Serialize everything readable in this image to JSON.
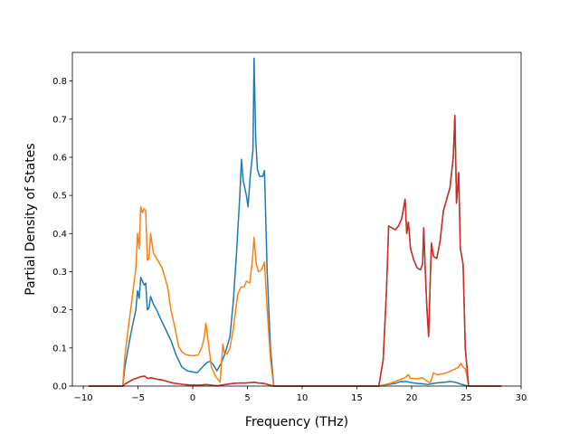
{
  "chart_data": {
    "type": "line",
    "title": "",
    "xlabel": "Frequency (THz)",
    "ylabel": "Partial Density of States",
    "xlim": [
      -11,
      30
    ],
    "ylim": [
      0,
      0.875
    ],
    "xticks": [
      -10,
      -5,
      0,
      5,
      10,
      15,
      20,
      25,
      30
    ],
    "xtick_labels": [
      "−10",
      "−5",
      "0",
      "5",
      "10",
      "15",
      "20",
      "25",
      "30"
    ],
    "yticks": [
      0.0,
      0.1,
      0.2,
      0.3,
      0.4,
      0.5,
      0.6,
      0.7,
      0.8
    ],
    "ytick_labels": [
      "0.0",
      "0.1",
      "0.2",
      "0.3",
      "0.4",
      "0.5",
      "0.6",
      "0.7",
      "0.8"
    ],
    "grid": false,
    "legend": null,
    "series": [
      {
        "color": "#1f77b4",
        "points": [
          [
            -9.5,
            0
          ],
          [
            -6.4,
            0
          ],
          [
            -6.2,
            0.05
          ],
          [
            -5.9,
            0.1
          ],
          [
            -5.5,
            0.16
          ],
          [
            -5.2,
            0.2
          ],
          [
            -5.05,
            0.25
          ],
          [
            -4.9,
            0.23
          ],
          [
            -4.75,
            0.285
          ],
          [
            -4.6,
            0.275
          ],
          [
            -4.45,
            0.265
          ],
          [
            -4.3,
            0.27
          ],
          [
            -4.15,
            0.2
          ],
          [
            -4.0,
            0.205
          ],
          [
            -3.85,
            0.235
          ],
          [
            -3.6,
            0.215
          ],
          [
            -3.3,
            0.2
          ],
          [
            -3.0,
            0.18
          ],
          [
            -2.5,
            0.15
          ],
          [
            -2.0,
            0.12
          ],
          [
            -1.5,
            0.08
          ],
          [
            -1.0,
            0.05
          ],
          [
            -0.5,
            0.04
          ],
          [
            0.0,
            0.037
          ],
          [
            0.4,
            0.035
          ],
          [
            0.9,
            0.05
          ],
          [
            1.3,
            0.062
          ],
          [
            1.6,
            0.065
          ],
          [
            1.9,
            0.055
          ],
          [
            2.2,
            0.04
          ],
          [
            2.6,
            0.06
          ],
          [
            3.0,
            0.09
          ],
          [
            3.4,
            0.13
          ],
          [
            3.7,
            0.22
          ],
          [
            4.0,
            0.35
          ],
          [
            4.3,
            0.5
          ],
          [
            4.45,
            0.595
          ],
          [
            4.6,
            0.54
          ],
          [
            4.9,
            0.5
          ],
          [
            5.05,
            0.47
          ],
          [
            5.25,
            0.55
          ],
          [
            5.5,
            0.62
          ],
          [
            5.6,
            0.86
          ],
          [
            5.75,
            0.65
          ],
          [
            5.9,
            0.57
          ],
          [
            6.1,
            0.55
          ],
          [
            6.4,
            0.55
          ],
          [
            6.55,
            0.565
          ],
          [
            6.8,
            0.3
          ],
          [
            7.1,
            0.1
          ],
          [
            7.4,
            0
          ],
          [
            17.0,
            0
          ],
          [
            17.4,
            0.002
          ],
          [
            18.0,
            0.005
          ],
          [
            18.5,
            0.007
          ],
          [
            19.0,
            0.012
          ],
          [
            19.5,
            0.012
          ],
          [
            20.0,
            0.009
          ],
          [
            20.5,
            0.007
          ],
          [
            21.0,
            0.006
          ],
          [
            21.5,
            0.004
          ],
          [
            22.0,
            0.007
          ],
          [
            22.5,
            0.009
          ],
          [
            23.0,
            0.01
          ],
          [
            23.5,
            0.012
          ],
          [
            24.0,
            0.01
          ],
          [
            24.5,
            0.005
          ],
          [
            25.0,
            0.001
          ],
          [
            25.2,
            0
          ],
          [
            28.2,
            0
          ]
        ]
      },
      {
        "color": "#ff7f0e",
        "points": [
          [
            -9.5,
            0
          ],
          [
            -6.4,
            0
          ],
          [
            -6.2,
            0.08
          ],
          [
            -5.9,
            0.15
          ],
          [
            -5.5,
            0.24
          ],
          [
            -5.2,
            0.31
          ],
          [
            -5.05,
            0.4
          ],
          [
            -4.9,
            0.36
          ],
          [
            -4.75,
            0.47
          ],
          [
            -4.6,
            0.455
          ],
          [
            -4.45,
            0.465
          ],
          [
            -4.3,
            0.46
          ],
          [
            -4.15,
            0.33
          ],
          [
            -4.0,
            0.335
          ],
          [
            -3.85,
            0.4
          ],
          [
            -3.6,
            0.35
          ],
          [
            -3.4,
            0.34
          ],
          [
            -3.2,
            0.33
          ],
          [
            -2.8,
            0.31
          ],
          [
            -2.3,
            0.26
          ],
          [
            -2.0,
            0.2
          ],
          [
            -1.6,
            0.15
          ],
          [
            -1.3,
            0.105
          ],
          [
            -1.0,
            0.09
          ],
          [
            -0.6,
            0.082
          ],
          [
            -0.2,
            0.08
          ],
          [
            0.2,
            0.08
          ],
          [
            0.5,
            0.082
          ],
          [
            0.8,
            0.1
          ],
          [
            1.0,
            0.12
          ],
          [
            1.2,
            0.165
          ],
          [
            1.4,
            0.12
          ],
          [
            1.7,
            0.05
          ],
          [
            2.1,
            0.025
          ],
          [
            2.5,
            0.01
          ],
          [
            2.75,
            0.11
          ],
          [
            2.9,
            0.085
          ],
          [
            3.15,
            0.085
          ],
          [
            3.4,
            0.1
          ],
          [
            3.7,
            0.15
          ],
          [
            4.1,
            0.24
          ],
          [
            4.4,
            0.26
          ],
          [
            4.7,
            0.26
          ],
          [
            4.9,
            0.275
          ],
          [
            5.2,
            0.27
          ],
          [
            5.45,
            0.33
          ],
          [
            5.6,
            0.39
          ],
          [
            5.8,
            0.32
          ],
          [
            6.0,
            0.3
          ],
          [
            6.3,
            0.305
          ],
          [
            6.55,
            0.325
          ],
          [
            6.8,
            0.2
          ],
          [
            7.1,
            0.07
          ],
          [
            7.4,
            0
          ],
          [
            17.0,
            0
          ],
          [
            17.4,
            0.003
          ],
          [
            18.0,
            0.007
          ],
          [
            18.5,
            0.012
          ],
          [
            19.0,
            0.018
          ],
          [
            19.4,
            0.022
          ],
          [
            19.7,
            0.03
          ],
          [
            19.9,
            0.02
          ],
          [
            20.3,
            0.02
          ],
          [
            20.7,
            0.02
          ],
          [
            21.0,
            0.022
          ],
          [
            21.3,
            0.015
          ],
          [
            21.7,
            0.008
          ],
          [
            22.0,
            0.035
          ],
          [
            22.3,
            0.03
          ],
          [
            22.8,
            0.032
          ],
          [
            23.2,
            0.035
          ],
          [
            23.6,
            0.04
          ],
          [
            24.0,
            0.045
          ],
          [
            24.3,
            0.05
          ],
          [
            24.5,
            0.06
          ],
          [
            24.7,
            0.05
          ],
          [
            24.9,
            0.045
          ],
          [
            25.1,
            0.02
          ],
          [
            25.2,
            0
          ],
          [
            28.2,
            0
          ]
        ]
      },
      {
        "color": "#2ca02c",
        "points": [
          [
            -9.5,
            0
          ],
          [
            -6.4,
            0
          ],
          [
            -6.2,
            0.005
          ],
          [
            -5.8,
            0.012
          ],
          [
            -5.4,
            0.018
          ],
          [
            -5.0,
            0.022
          ],
          [
            -4.7,
            0.025
          ],
          [
            -4.4,
            0.026
          ],
          [
            -4.1,
            0.02
          ],
          [
            -3.8,
            0.022
          ],
          [
            -3.3,
            0.018
          ],
          [
            -2.8,
            0.016
          ],
          [
            -2.3,
            0.012
          ],
          [
            -1.8,
            0.008
          ],
          [
            -1.3,
            0.006
          ],
          [
            -0.8,
            0.004
          ],
          [
            -0.3,
            0.003
          ],
          [
            0.3,
            0.002
          ],
          [
            0.8,
            0.003
          ],
          [
            1.3,
            0.004
          ],
          [
            1.8,
            0.002
          ],
          [
            2.3,
            0.001
          ],
          [
            2.7,
            0.003
          ],
          [
            3.2,
            0.005
          ],
          [
            3.7,
            0.007
          ],
          [
            4.2,
            0.008
          ],
          [
            4.7,
            0.008
          ],
          [
            5.2,
            0.009
          ],
          [
            5.6,
            0.01
          ],
          [
            6.0,
            0.008
          ],
          [
            6.5,
            0.007
          ],
          [
            7.0,
            0.003
          ],
          [
            7.4,
            0
          ],
          [
            17.0,
            0
          ],
          [
            17.4,
            0.07
          ],
          [
            17.7,
            0.25
          ],
          [
            17.9,
            0.42
          ],
          [
            18.2,
            0.415
          ],
          [
            18.5,
            0.41
          ],
          [
            18.8,
            0.42
          ],
          [
            19.1,
            0.44
          ],
          [
            19.4,
            0.49
          ],
          [
            19.55,
            0.4
          ],
          [
            19.7,
            0.43
          ],
          [
            19.9,
            0.36
          ],
          [
            20.2,
            0.33
          ],
          [
            20.5,
            0.31
          ],
          [
            20.8,
            0.305
          ],
          [
            21.0,
            0.32
          ],
          [
            21.1,
            0.415
          ],
          [
            21.25,
            0.3
          ],
          [
            21.4,
            0.2
          ],
          [
            21.55,
            0.13
          ],
          [
            21.8,
            0.375
          ],
          [
            22.0,
            0.34
          ],
          [
            22.3,
            0.335
          ],
          [
            22.6,
            0.38
          ],
          [
            22.9,
            0.46
          ],
          [
            23.2,
            0.49
          ],
          [
            23.5,
            0.52
          ],
          [
            23.8,
            0.6
          ],
          [
            23.95,
            0.71
          ],
          [
            24.1,
            0.48
          ],
          [
            24.3,
            0.56
          ],
          [
            24.45,
            0.36
          ],
          [
            24.7,
            0.32
          ],
          [
            24.9,
            0.1
          ],
          [
            25.2,
            0
          ],
          [
            28.2,
            0
          ]
        ]
      },
      {
        "color": "#d62728",
        "points": [
          [
            -9.5,
            0
          ],
          [
            -6.4,
            0
          ],
          [
            -6.2,
            0.005
          ],
          [
            -5.8,
            0.012
          ],
          [
            -5.4,
            0.018
          ],
          [
            -5.0,
            0.022
          ],
          [
            -4.7,
            0.025
          ],
          [
            -4.4,
            0.026
          ],
          [
            -4.1,
            0.02
          ],
          [
            -3.8,
            0.022
          ],
          [
            -3.3,
            0.018
          ],
          [
            -2.8,
            0.016
          ],
          [
            -2.3,
            0.012
          ],
          [
            -1.8,
            0.008
          ],
          [
            -1.3,
            0.006
          ],
          [
            -0.8,
            0.004
          ],
          [
            -0.3,
            0.003
          ],
          [
            0.3,
            0.002
          ],
          [
            0.8,
            0.003
          ],
          [
            1.3,
            0.004
          ],
          [
            1.8,
            0.002
          ],
          [
            2.3,
            0.001
          ],
          [
            2.7,
            0.003
          ],
          [
            3.2,
            0.005
          ],
          [
            3.7,
            0.007
          ],
          [
            4.2,
            0.008
          ],
          [
            4.7,
            0.008
          ],
          [
            5.2,
            0.009
          ],
          [
            5.6,
            0.01
          ],
          [
            6.0,
            0.008
          ],
          [
            6.5,
            0.007
          ],
          [
            7.0,
            0.003
          ],
          [
            7.4,
            0
          ],
          [
            17.0,
            0
          ],
          [
            17.4,
            0.07
          ],
          [
            17.7,
            0.25
          ],
          [
            17.9,
            0.42
          ],
          [
            18.2,
            0.415
          ],
          [
            18.5,
            0.41
          ],
          [
            18.8,
            0.42
          ],
          [
            19.1,
            0.44
          ],
          [
            19.4,
            0.49
          ],
          [
            19.55,
            0.4
          ],
          [
            19.7,
            0.43
          ],
          [
            19.9,
            0.36
          ],
          [
            20.2,
            0.33
          ],
          [
            20.5,
            0.31
          ],
          [
            20.8,
            0.305
          ],
          [
            21.0,
            0.32
          ],
          [
            21.1,
            0.415
          ],
          [
            21.25,
            0.3
          ],
          [
            21.4,
            0.2
          ],
          [
            21.55,
            0.13
          ],
          [
            21.8,
            0.375
          ],
          [
            22.0,
            0.34
          ],
          [
            22.3,
            0.335
          ],
          [
            22.6,
            0.38
          ],
          [
            22.9,
            0.46
          ],
          [
            23.2,
            0.49
          ],
          [
            23.5,
            0.52
          ],
          [
            23.8,
            0.6
          ],
          [
            23.95,
            0.71
          ],
          [
            24.1,
            0.48
          ],
          [
            24.3,
            0.56
          ],
          [
            24.45,
            0.36
          ],
          [
            24.7,
            0.32
          ],
          [
            24.9,
            0.1
          ],
          [
            25.2,
            0
          ],
          [
            28.2,
            0
          ]
        ]
      }
    ]
  }
}
